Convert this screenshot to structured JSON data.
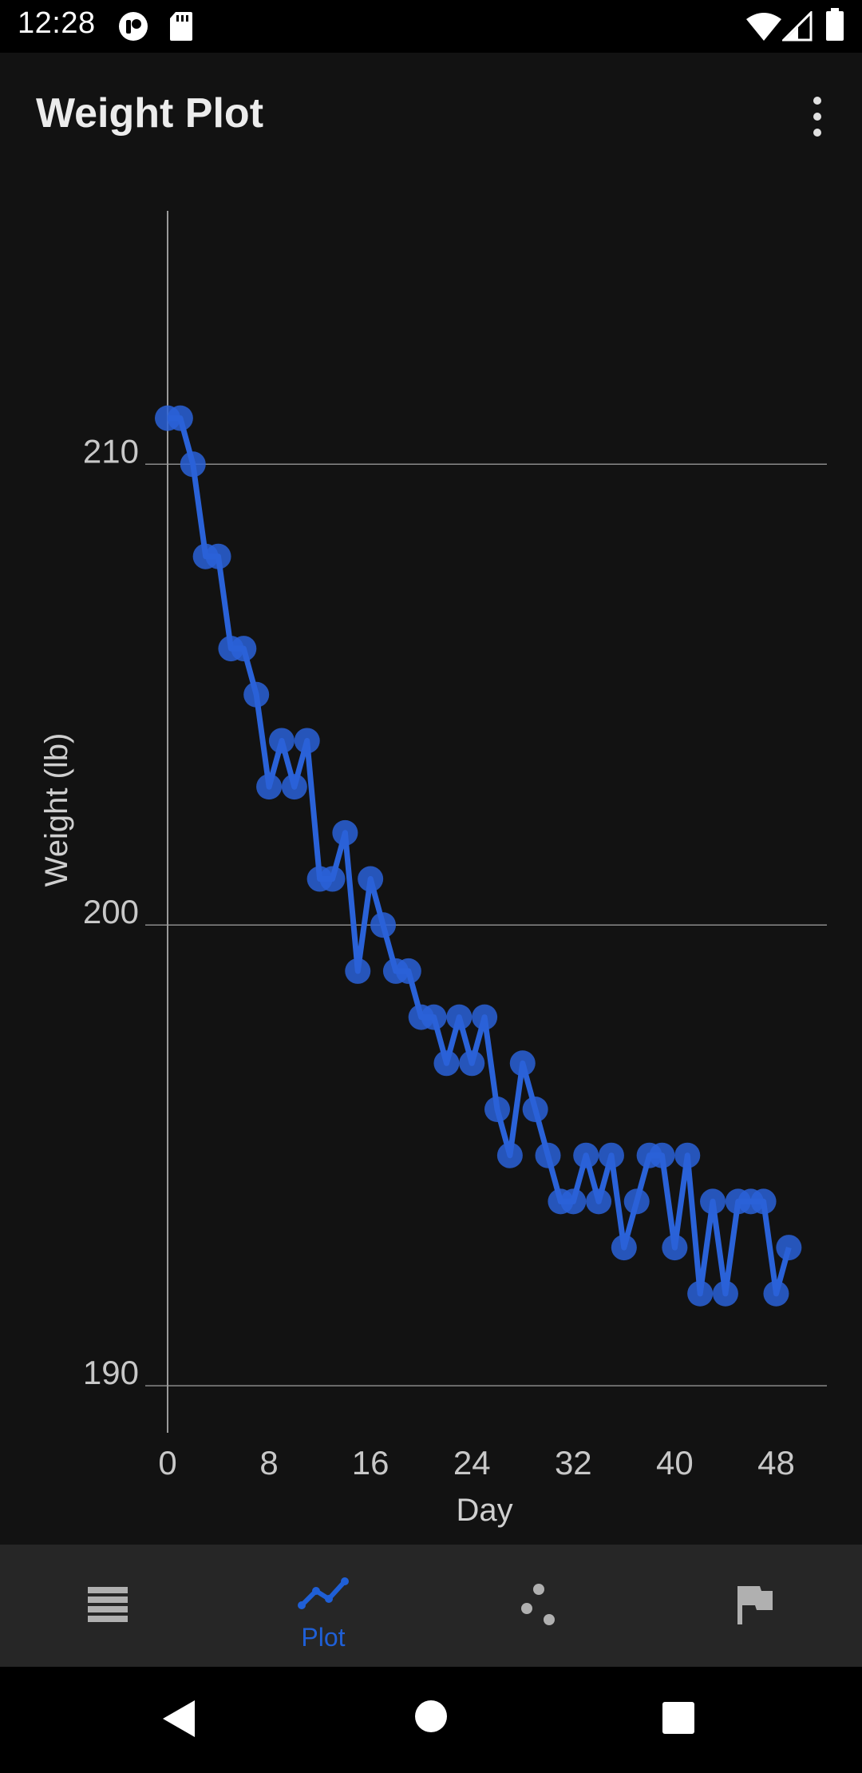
{
  "status_bar": {
    "time": "12:28"
  },
  "app_bar": {
    "title": "Weight Plot"
  },
  "icons": {
    "status_left": [
      "app-notification-icon",
      "sd-card-icon"
    ],
    "status_right": [
      "wifi-icon",
      "signal-icon",
      "battery-icon"
    ],
    "overflow": "more-vert-icon",
    "nav": [
      "list-icon",
      "plot-icon",
      "scatter-icon",
      "flag-icon"
    ],
    "system": [
      "back-icon",
      "home-icon",
      "recents-icon"
    ]
  },
  "colors": {
    "accent": "#1f5fd6",
    "series": "#2a62d8",
    "background": "#121212",
    "nav_background": "#262626",
    "nav_inactive": "#b0b0b0"
  },
  "chart_data": {
    "type": "line",
    "xlabel": "Day",
    "ylabel": "Weight (lb)",
    "xlim": [
      0,
      52
    ],
    "ylim": [
      189.5,
      215.5
    ],
    "x_ticks": [
      0,
      8,
      16,
      24,
      32,
      40,
      48
    ],
    "y_ticks": [
      190,
      200,
      210
    ],
    "grid": "horizontal",
    "series": [
      {
        "x": [
          0,
          1,
          2,
          3,
          4,
          5,
          6,
          7,
          8,
          9,
          10,
          11,
          12,
          13,
          14,
          15,
          16,
          17,
          18,
          19,
          20,
          21,
          22,
          23,
          24,
          25,
          26,
          27,
          28,
          29,
          30,
          31,
          32,
          33,
          34,
          35,
          36,
          37,
          38,
          39,
          40,
          41,
          42,
          43,
          44,
          45,
          46,
          47,
          48,
          49
        ],
        "values": [
          211,
          211,
          210,
          208,
          208,
          206,
          206,
          205,
          203,
          204,
          203,
          204,
          201,
          201,
          202,
          199,
          201,
          200,
          199,
          199,
          198,
          198,
          197,
          198,
          197,
          198,
          196,
          195,
          197,
          196,
          195,
          194,
          194,
          195,
          194,
          195,
          193,
          194,
          195,
          195,
          193,
          195,
          192,
          194,
          192,
          194,
          194,
          194,
          192,
          193
        ]
      }
    ]
  },
  "bottom_nav": {
    "active_label": "Plot",
    "items": [
      "list",
      "plot",
      "scatter",
      "flag"
    ]
  }
}
